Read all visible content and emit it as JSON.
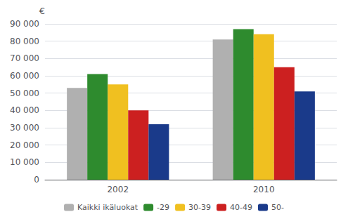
{
  "chart_data": {
    "type": "bar",
    "categories": [
      "2002",
      "2010"
    ],
    "series": [
      {
        "name": "Kaikki ikäluokat",
        "color": "#b0b0b0",
        "values": [
          53000,
          81000
        ]
      },
      {
        "name": "-29",
        "color": "#2e8b2e",
        "values": [
          61000,
          87000
        ]
      },
      {
        "name": "30-39",
        "color": "#f0c020",
        "values": [
          55000,
          84000
        ]
      },
      {
        "name": "40-49",
        "color": "#cc2020",
        "values": [
          40000,
          65000
        ]
      },
      {
        "name": "50-",
        "color": "#1a3a8a",
        "values": [
          32000,
          51000
        ]
      }
    ],
    "ylabel": "€",
    "ylim": [
      0,
      90000
    ],
    "yticks": [
      0,
      {
        "value": 10000,
        "label": "10 000"
      },
      {
        "value": 20000,
        "label": "20 000"
      },
      {
        "value": 30000,
        "label": "30 000"
      },
      {
        "value": 40000,
        "label": "40 000"
      },
      {
        "value": 50000,
        "label": "50 000"
      },
      {
        "value": 60000,
        "label": "60 000"
      },
      {
        "value": 70000,
        "label": "70 000"
      },
      {
        "value": 80000,
        "label": "80 000"
      },
      {
        "value": 90000,
        "label": "90 000"
      }
    ],
    "grid": true,
    "legend": "bottom"
  }
}
